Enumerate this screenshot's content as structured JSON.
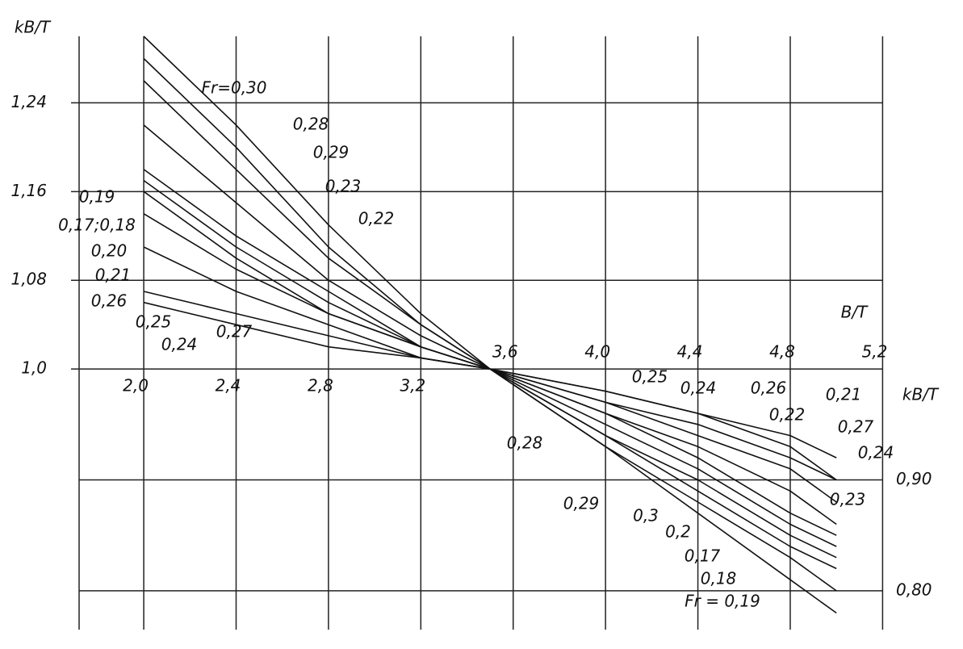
{
  "chart_data": {
    "type": "line",
    "y_label": "kB/T",
    "x_label": "B/T",
    "y2_label": "kB/T",
    "x": [
      2.0,
      2.4,
      2.8,
      3.2,
      3.5,
      4.0,
      4.4,
      4.8,
      5.0
    ],
    "xlim": [
      1.72,
      5.3
    ],
    "xticks": [
      {
        "value": 2.0,
        "label": "2,0"
      },
      {
        "value": 2.4,
        "label": "2,4"
      },
      {
        "value": 2.8,
        "label": "2,8"
      },
      {
        "value": 3.2,
        "label": "3,2"
      },
      {
        "value": 3.6,
        "label": "3,6"
      },
      {
        "value": 4.0,
        "label": "4,0"
      },
      {
        "value": 4.4,
        "label": "4,4"
      },
      {
        "value": 4.8,
        "label": "4,8"
      },
      {
        "value": 5.2,
        "label": "5,2"
      }
    ],
    "ylim": [
      0.765,
      1.3
    ],
    "yticks": [
      {
        "value": 1.0,
        "label": "1,0"
      },
      {
        "value": 1.08,
        "label": "1,08"
      },
      {
        "value": 1.16,
        "label": "1,16"
      },
      {
        "value": 1.24,
        "label": "1,24"
      }
    ],
    "y2lim": [
      0.765,
      1.3
    ],
    "y2ticks": [
      {
        "value": 0.8,
        "label": "0,80"
      },
      {
        "value": 0.9,
        "label": "0,90"
      }
    ],
    "grid": true,
    "color": "#111111",
    "series": [
      {
        "values": [
          1.3,
          1.22,
          1.13,
          1.05,
          1.0,
          0.93,
          0.87,
          0.81,
          0.78
        ]
      },
      {
        "values": [
          1.28,
          1.2,
          1.11,
          1.04,
          1.0,
          0.93,
          0.88,
          0.83,
          0.8
        ]
      },
      {
        "values": [
          1.26,
          1.18,
          1.1,
          1.04,
          1.0,
          0.94,
          0.89,
          0.84,
          0.82
        ]
      },
      {
        "values": [
          1.22,
          1.15,
          1.08,
          1.03,
          1.0,
          0.94,
          0.9,
          0.85,
          0.83
        ]
      },
      {
        "values": [
          1.18,
          1.12,
          1.07,
          1.02,
          1.0,
          0.95,
          0.91,
          0.86,
          0.84
        ]
      },
      {
        "values": [
          1.17,
          1.11,
          1.06,
          1.02,
          1.0,
          0.96,
          0.92,
          0.87,
          0.85
        ]
      },
      {
        "values": [
          1.16,
          1.1,
          1.05,
          1.02,
          1.0,
          0.96,
          0.93,
          0.89,
          0.86
        ]
      },
      {
        "values": [
          1.14,
          1.09,
          1.05,
          1.02,
          1.0,
          0.97,
          0.94,
          0.91,
          0.88
        ]
      },
      {
        "values": [
          1.11,
          1.07,
          1.04,
          1.01,
          1.0,
          0.97,
          0.95,
          0.92,
          0.9
        ]
      },
      {
        "values": [
          1.07,
          1.05,
          1.03,
          1.01,
          1.0,
          0.98,
          0.96,
          0.93,
          0.9
        ]
      },
      {
        "values": [
          1.06,
          1.04,
          1.02,
          1.01,
          1.0,
          0.98,
          0.96,
          0.94,
          0.92
        ]
      }
    ],
    "annotations": [
      "Fr=0,30",
      "0,28",
      "0,29",
      "0,23",
      "0,22",
      "0,19",
      "0,17;0,18",
      "0,20",
      "0,21",
      "0,26",
      "0,25",
      "0,24",
      "0,27",
      "0,28",
      "0,25",
      "0,24",
      "0,26",
      "0,21",
      "0,22",
      "0,27",
      "0,24",
      "0,23",
      "0,29",
      "0,3",
      "0,2",
      "0,17",
      "0,18",
      "Fr = 0,19"
    ]
  }
}
